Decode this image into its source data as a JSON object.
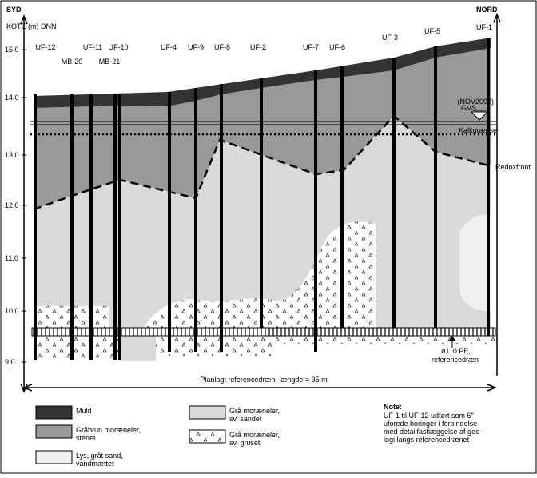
{
  "header": {
    "left": "SYD",
    "right": "NORD",
    "axis_label": "KOTE (m) DNN"
  },
  "axis_ticks": [
    "15,0",
    "14,0",
    "13,0",
    "12,0",
    "11,0",
    "10,0",
    "9,0"
  ],
  "boreholes": [
    "UF-12",
    "MB-20",
    "UF-11",
    "UF-10",
    "MB-21",
    "UF-4",
    "UF-9",
    "UF-8",
    "UF-2",
    "UF-7",
    "UF-6",
    "UF-3",
    "UF-5",
    "UF-1"
  ],
  "annotations": {
    "gvs": [
      "GVS",
      "(NOV2000)"
    ],
    "kalk": "Kalkgrænse",
    "redox": "Redoxfront",
    "pipe": [
      "ø110 PE,",
      "referencedræn"
    ],
    "length": "Planlagt referencedræn, længde = 35 m"
  },
  "legend": [
    {
      "lines": [
        "Muld"
      ]
    },
    {
      "lines": [
        "Gråbrun moræneler,",
        "stenet"
      ]
    },
    {
      "lines": [
        "Lys, gråt sand,",
        "vandmættet"
      ]
    },
    {
      "lines": [
        "Grå moræneler,",
        "sv. sandet"
      ]
    },
    {
      "lines": [
        "Grå moræneler,",
        "sv. gruset"
      ]
    }
  ],
  "note": {
    "title": "Note:",
    "lines": [
      "UF-1 til UF-12 udført som 6\"",
      "uforede boringer i forbindelse",
      "med detailfastlæggelse af geo-",
      "logi langs referencedrænet"
    ]
  }
}
